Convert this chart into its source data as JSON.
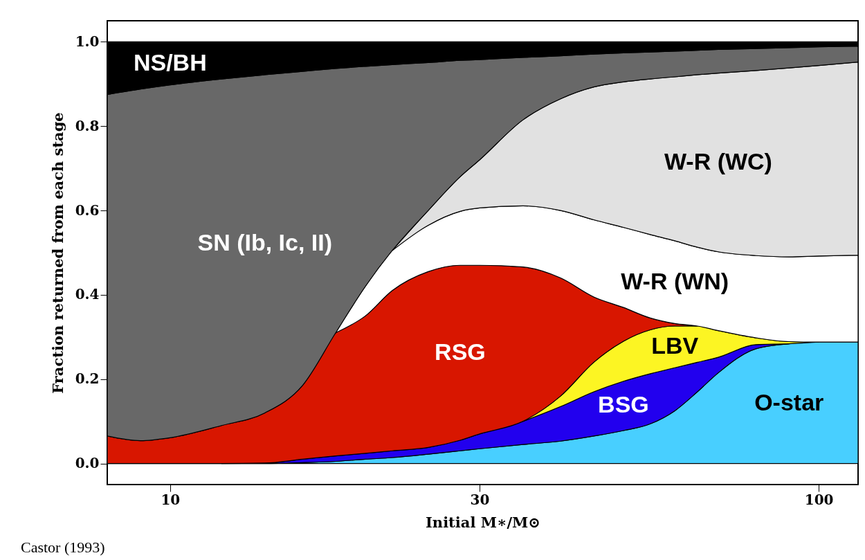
{
  "chart_data": {
    "type": "area",
    "stacked": true,
    "log": "x",
    "xlabel": "Initial M∗/M⊙",
    "ylabel": "Fraction returned from each stage",
    "x": [
      8,
      9,
      10,
      12,
      14,
      16,
      18,
      20,
      22,
      25,
      28,
      30,
      35,
      40,
      45,
      50,
      55,
      60,
      65,
      70,
      80,
      90,
      100,
      115
    ],
    "xlim": [
      8,
      115
    ],
    "xticks": [
      10,
      30,
      100
    ],
    "ylim": [
      -0.05,
      1.05
    ],
    "yticks": [
      {
        "value": 0,
        "label": "0.0"
      },
      {
        "value": 0.2,
        "label": "0.2"
      },
      {
        "value": 0.4,
        "label": "0.4"
      },
      {
        "value": 0.6,
        "label": "0.6"
      },
      {
        "value": 0.8,
        "label": "0.8"
      },
      {
        "value": 1.0,
        "label": "1.0"
      }
    ],
    "series": [
      {
        "name": "O-star",
        "color": "#48cfff",
        "values": [
          0,
          0,
          0,
          0,
          0,
          0.002,
          0.005,
          0.01,
          0.014,
          0.022,
          0.03,
          0.035,
          0.045,
          0.053,
          0.065,
          0.078,
          0.094,
          0.125,
          0.17,
          0.215,
          0.272,
          0.284,
          0.288,
          0.288
        ]
      },
      {
        "name": "BSG",
        "color": "#2200ee",
        "values": [
          null,
          null,
          null,
          0,
          0.001,
          0.008,
          0.013,
          0.014,
          0.016,
          0.016,
          0.025,
          0.035,
          0.055,
          0.082,
          0.105,
          0.117,
          0.119,
          0.102,
          0.07,
          0.037,
          0.01,
          0,
          null,
          null
        ]
      },
      {
        "name": "LBV",
        "color": "#fcf523",
        "values": [
          null,
          null,
          null,
          null,
          null,
          null,
          null,
          null,
          null,
          null,
          null,
          null,
          0,
          0.025,
          0.07,
          0.095,
          0.104,
          0.099,
          0.086,
          0.063,
          0.016,
          0.005,
          0,
          null
        ]
      },
      {
        "name": "RSG",
        "color": "#d81600",
        "values": [
          0.065,
          0.054,
          0.061,
          0.09,
          0.119,
          0.175,
          0.292,
          0.326,
          0.38,
          0.417,
          0.415,
          0.4,
          0.366,
          0.28,
          0.155,
          0.08,
          0.028,
          0.006,
          0,
          null,
          null,
          null,
          null,
          null
        ]
      },
      {
        "name": "W-R  (WN)",
        "color": "#ffffff",
        "values": [
          null,
          null,
          null,
          null,
          null,
          null,
          0,
          0.07,
          0.095,
          0.11,
          0.128,
          0.136,
          0.145,
          0.16,
          0.183,
          0.19,
          0.198,
          0.196,
          0.187,
          0.187,
          0.195,
          0.201,
          0.204,
          0.206
        ]
      },
      {
        "name": "W-R  (WC)",
        "color": "#e1e1e1",
        "values": [
          null,
          null,
          null,
          null,
          null,
          null,
          null,
          null,
          0,
          0.035,
          0.082,
          0.114,
          0.204,
          0.265,
          0.315,
          0.345,
          0.369,
          0.389,
          0.409,
          0.424,
          0.439,
          0.448,
          0.452,
          0.458
        ]
      },
      {
        "name": "SN (Ib, Ic, II)",
        "color": "#686868",
        "values": [
          0.81,
          0.834,
          0.837,
          0.822,
          0.802,
          0.745,
          0.627,
          0.522,
          0.441,
          0.351,
          0.276,
          0.238,
          0.148,
          0.102,
          0.078,
          0.069,
          0.064,
          0.061,
          0.058,
          0.056,
          0.052,
          0.048,
          0.044,
          0.038
        ]
      },
      {
        "name": "NS/BH",
        "color": "#000000",
        "values": [
          0.125,
          0.112,
          0.102,
          0.088,
          0.078,
          0.07,
          0.063,
          0.058,
          0.054,
          0.049,
          0.044,
          0.042,
          0.037,
          0.033,
          0.029,
          0.026,
          0.024,
          0.022,
          0.02,
          0.018,
          0.016,
          0.014,
          0.012,
          0.01
        ]
      }
    ],
    "annotations": [
      "Castor (1993)"
    ]
  }
}
